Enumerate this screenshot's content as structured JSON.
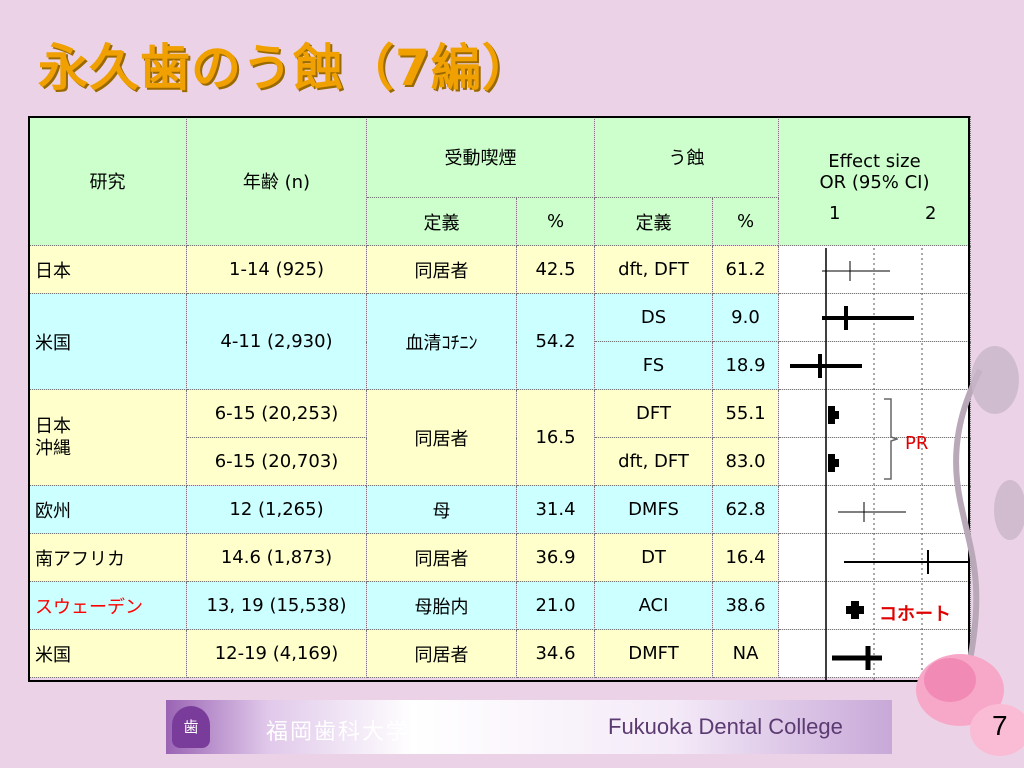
{
  "title": "永久歯のう蝕（7編）",
  "table": {
    "headers": {
      "study": "研究",
      "age": "年齢 (n)",
      "smoke_group": "受動喫煙",
      "caries_group": "う蝕",
      "definition": "定義",
      "percent": "%",
      "effect_line1": "Effect size",
      "effect_line2": "OR (95% CI)",
      "axis_1": "1",
      "axis_2": "2"
    },
    "rows": [
      {
        "study": "日本",
        "age": "1-14 (925)",
        "smoke_def": "同居者",
        "smoke_pct": "42.5",
        "caries_def": "dft, DFT",
        "caries_pct": "61.2"
      },
      {
        "study": "米国",
        "age": "4-11 (2,930)",
        "smoke_def": "血清ｺﾁﾆﾝ",
        "smoke_pct": "54.2",
        "caries_def": "DS",
        "caries_pct": "9.0"
      },
      {
        "caries_def": "FS",
        "caries_pct": "18.9"
      },
      {
        "study": "日本",
        "study_line2": "沖縄",
        "age": "6-15 (20,253)",
        "smoke_def": "同居者",
        "smoke_pct": "16.5",
        "caries_def": "DFT",
        "caries_pct": "55.1"
      },
      {
        "age": "6-15 (20,703)",
        "caries_def": "dft, DFT",
        "caries_pct": "83.0"
      },
      {
        "study": "欧州",
        "age": "12 (1,265)",
        "smoke_def": "母",
        "smoke_pct": "31.4",
        "caries_def": "DMFS",
        "caries_pct": "62.8"
      },
      {
        "study": "南アフリカ",
        "age": "14.6 (1,873)",
        "smoke_def": "同居者",
        "smoke_pct": "36.9",
        "caries_def": "DT",
        "caries_pct": "16.4"
      },
      {
        "study": "スウェーデン",
        "age": "13, 19 (15,538)",
        "smoke_def": "母胎内",
        "smoke_pct": "21.0",
        "caries_def": "ACI",
        "caries_pct": "38.6"
      },
      {
        "study": "米国",
        "age": "12-19 (4,169)",
        "smoke_def": "同居者",
        "smoke_pct": "34.6",
        "caries_def": "DMFT",
        "caries_pct": "NA"
      }
    ]
  },
  "annotations": {
    "pr": "PR",
    "cohort": "コホート"
  },
  "colors": {
    "title": "#f0a000",
    "header_bg": "#ccffcc",
    "row_yellow": "#ffffcc",
    "row_cyan": "#ccffff",
    "highlight": "#ff0000"
  },
  "footer": {
    "emblem": "歯",
    "name_ja": "福岡歯科大学",
    "name_en": "Fukuoka Dental College"
  },
  "page_number": "7"
}
